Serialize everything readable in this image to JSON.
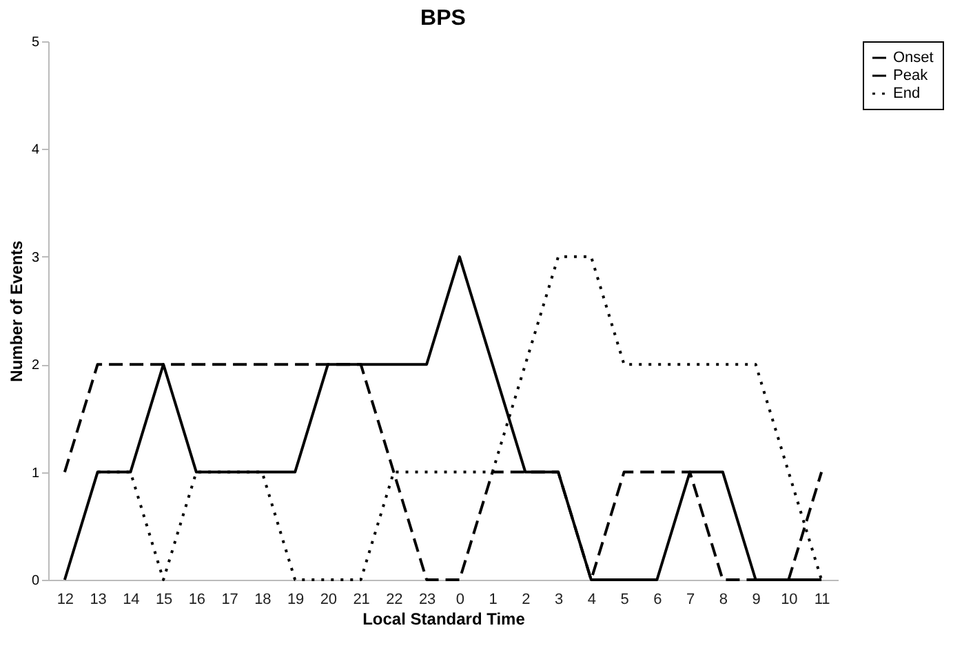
{
  "chart_data": {
    "type": "line",
    "title": "BPS",
    "xlabel": "Local Standard Time",
    "ylabel": "Number of Events",
    "categories": [
      "12",
      "13",
      "14",
      "15",
      "16",
      "17",
      "18",
      "19",
      "20",
      "21",
      "22",
      "23",
      "0",
      "1",
      "2",
      "3",
      "4",
      "5",
      "6",
      "7",
      "8",
      "9",
      "10",
      "11"
    ],
    "ylim": [
      0,
      5
    ],
    "yticks": [
      0,
      1,
      2,
      3,
      4,
      5
    ],
    "grid": false,
    "legend": "right",
    "marker": "none",
    "series": [
      {
        "name": "Onset",
        "color": "#000000",
        "line_style": "dashed",
        "values": [
          1,
          2,
          2,
          2,
          2,
          2,
          2,
          2,
          2,
          2,
          1,
          0,
          0,
          1,
          1,
          1,
          0,
          1,
          1,
          1,
          0,
          0,
          0,
          1
        ]
      },
      {
        "name": "Peak",
        "color": "#000000",
        "line_style": "solid",
        "values": [
          0,
          1,
          1,
          2,
          1,
          1,
          1,
          1,
          2,
          2,
          2,
          2,
          3,
          2,
          1,
          1,
          0,
          0,
          0,
          1,
          1,
          0,
          0,
          0
        ]
      },
      {
        "name": "End",
        "color": "#000000",
        "line_style": "dotted",
        "values": [
          null,
          1,
          1,
          0,
          1,
          1,
          1,
          0,
          0,
          0,
          1,
          1,
          1,
          1,
          2,
          3,
          3,
          2,
          2,
          2,
          2,
          2,
          1,
          0
        ]
      }
    ]
  }
}
